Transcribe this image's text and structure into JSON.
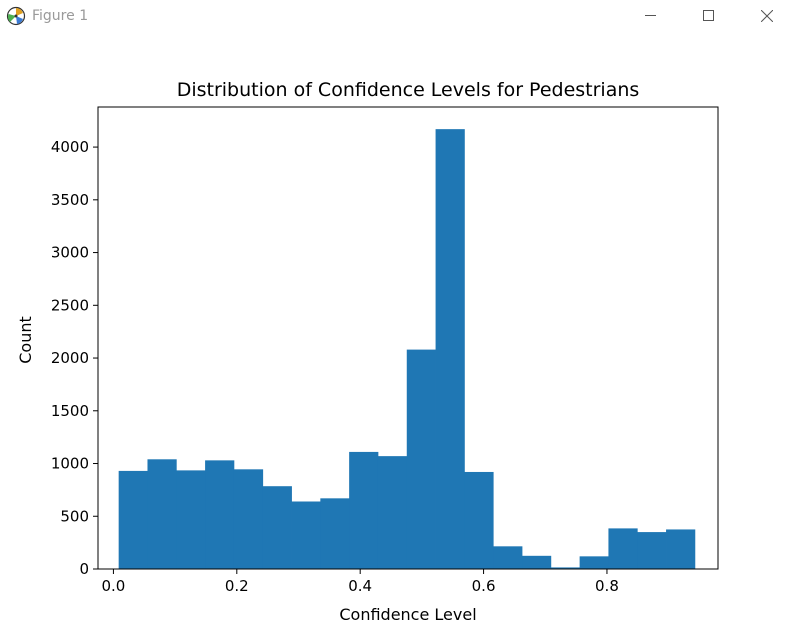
{
  "window": {
    "title": "Figure 1",
    "icons": [
      "figure-app-icon",
      "minimize-icon",
      "maximize-icon",
      "close-icon"
    ]
  },
  "chart_data": {
    "type": "bar",
    "title": "Distribution of Confidence Levels for Pedestrians",
    "xlabel": "Confidence Level",
    "ylabel": "Count",
    "xlim": [
      -0.025,
      0.98
    ],
    "ylim": [
      0,
      4380
    ],
    "xticks": [
      0.0,
      0.2,
      0.4,
      0.6,
      0.8
    ],
    "xtick_labels": [
      "0.0",
      "0.2",
      "0.4",
      "0.6",
      "0.8"
    ],
    "yticks": [
      0,
      500,
      1000,
      1500,
      2000,
      2500,
      3000,
      3500,
      4000
    ],
    "ytick_labels": [
      "0",
      "500",
      "1000",
      "1500",
      "2000",
      "2500",
      "3000",
      "3500",
      "4000"
    ],
    "bin_edges": [
      0.0085,
      0.0552,
      0.1019,
      0.1486,
      0.1953,
      0.242,
      0.2887,
      0.3354,
      0.3821,
      0.4288,
      0.4755,
      0.5222,
      0.5689,
      0.6156,
      0.6623,
      0.709,
      0.7557,
      0.8024,
      0.8491,
      0.8958,
      0.9425
    ],
    "values": [
      930,
      1040,
      935,
      1030,
      945,
      785,
      640,
      670,
      1110,
      1070,
      2080,
      4170,
      920,
      215,
      125,
      15,
      120,
      385,
      350,
      375
    ],
    "bar_color": "#1f77b4",
    "grid": false,
    "legend": "none"
  }
}
